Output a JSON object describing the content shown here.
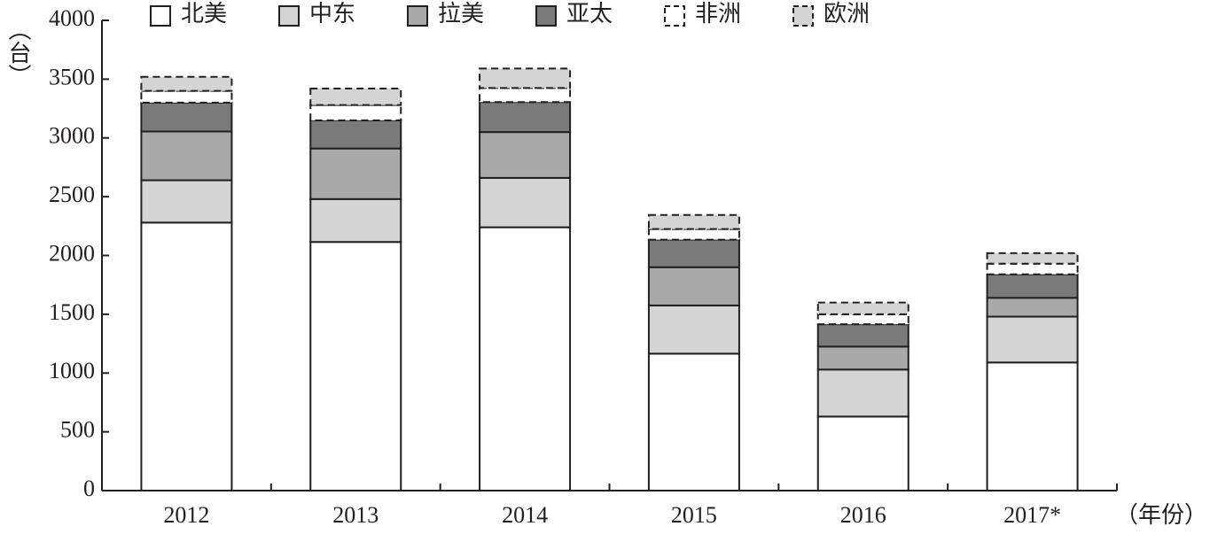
{
  "chart_data": {
    "type": "stacked_bar",
    "y_label": "（台）",
    "x_label": "（年份）",
    "categories": [
      "2012",
      "2013",
      "2014",
      "2015",
      "2016",
      "2017*"
    ],
    "series": [
      {
        "name": "北美",
        "color": "#ffffff",
        "values": [
          2280,
          2115,
          2240,
          1165,
          630,
          1090
        ]
      },
      {
        "name": "中东",
        "color": "#d4d4d4",
        "values": [
          360,
          365,
          420,
          410,
          400,
          390
        ]
      },
      {
        "name": "拉美",
        "color": "#a9a9a9",
        "values": [
          415,
          430,
          390,
          325,
          195,
          160
        ]
      },
      {
        "name": "亚太",
        "color": "#7a7a7a",
        "values": [
          245,
          240,
          255,
          235,
          190,
          200
        ]
      },
      {
        "name": "非洲",
        "color": "#ffffff",
        "dashed": true,
        "values": [
          100,
          130,
          120,
          90,
          85,
          90
        ]
      },
      {
        "name": "欧洲",
        "color": "#d4d4d4",
        "dashed": true,
        "values": [
          120,
          140,
          165,
          120,
          100,
          90
        ]
      }
    ],
    "ylim": [
      0,
      4000
    ],
    "yticks": [
      0,
      500,
      1000,
      1500,
      2000,
      2500,
      3000,
      3500,
      4000
    ],
    "legend": "top"
  }
}
